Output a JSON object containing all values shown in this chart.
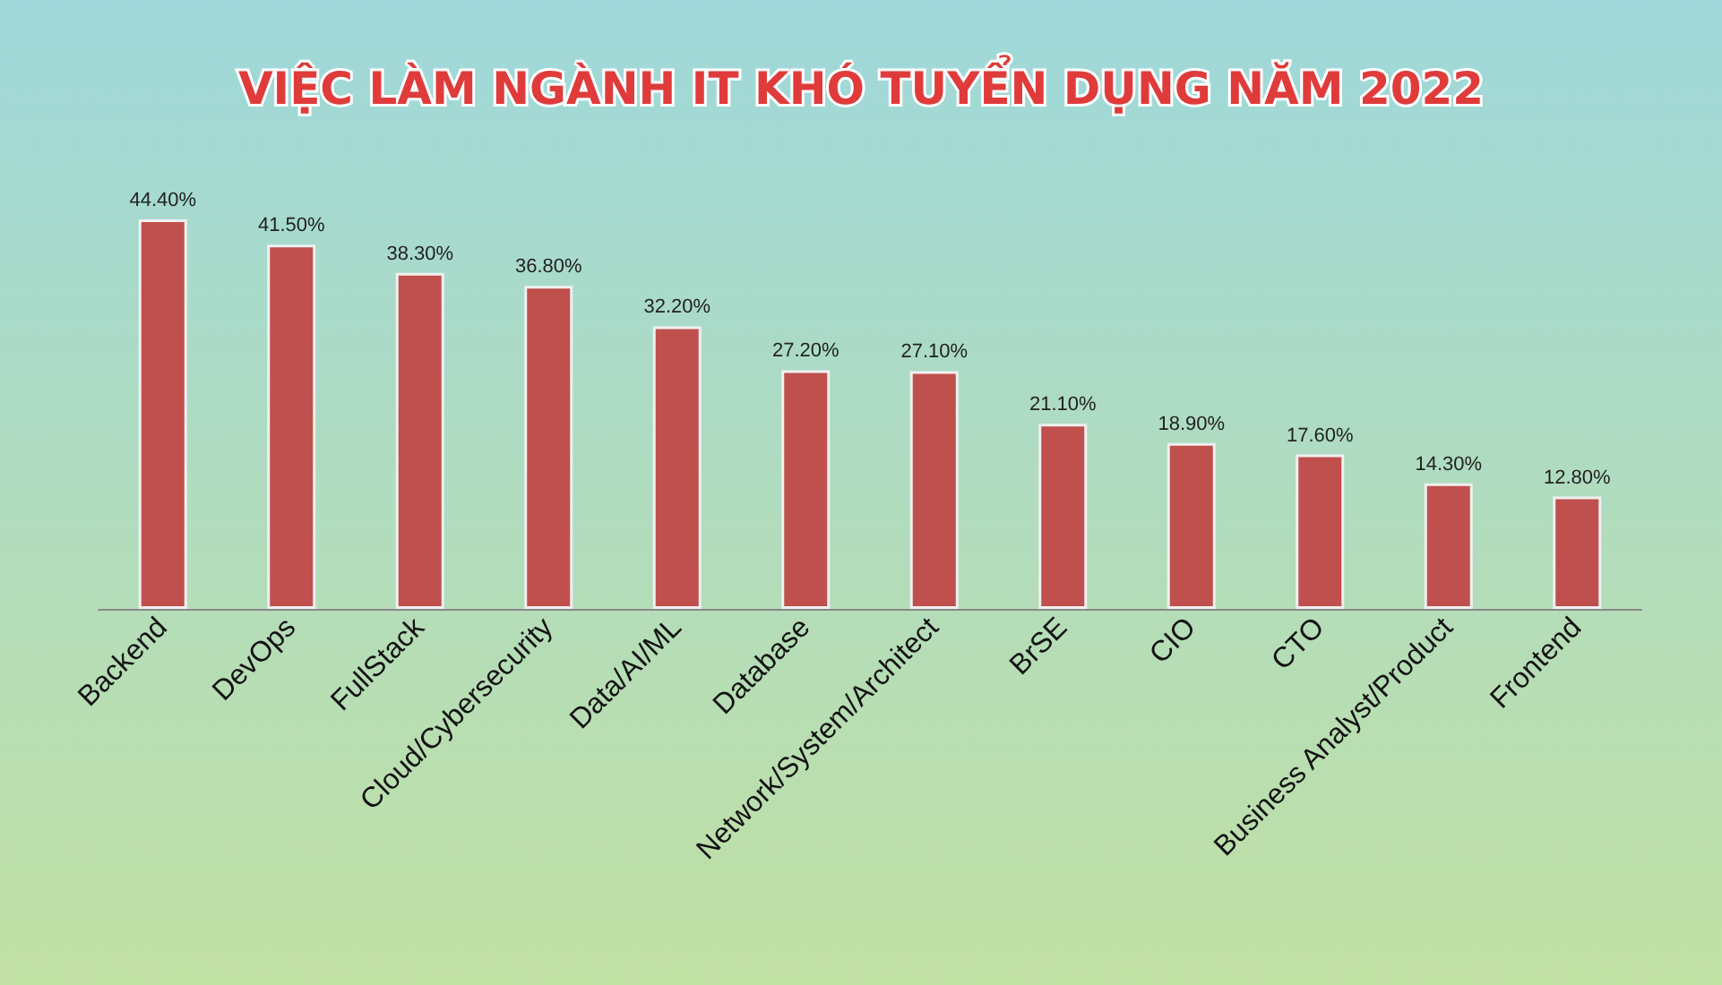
{
  "chart_data": {
    "type": "bar",
    "title": "VIỆC LÀM NGÀNH IT KHÓ TUYỂN DỤNG NĂM 2022",
    "categories": [
      "Backend",
      "DevOps",
      "FullStack",
      "Cloud/Cybersecurity",
      "Data/AI/ML",
      "Database",
      "Network/System/Architect",
      "BrSE",
      "CIO",
      "CTO",
      "Business Analyst/Product",
      "Frontend"
    ],
    "values": [
      44.4,
      41.5,
      38.3,
      36.8,
      32.2,
      27.2,
      27.1,
      21.1,
      18.9,
      17.6,
      14.3,
      12.8
    ],
    "value_labels": [
      "44.40%",
      "41.50%",
      "38.30%",
      "36.80%",
      "32.20%",
      "27.20%",
      "27.10%",
      "21.10%",
      "18.90%",
      "17.60%",
      "14.30%",
      "12.80%"
    ],
    "color": "#c0504d"
  }
}
